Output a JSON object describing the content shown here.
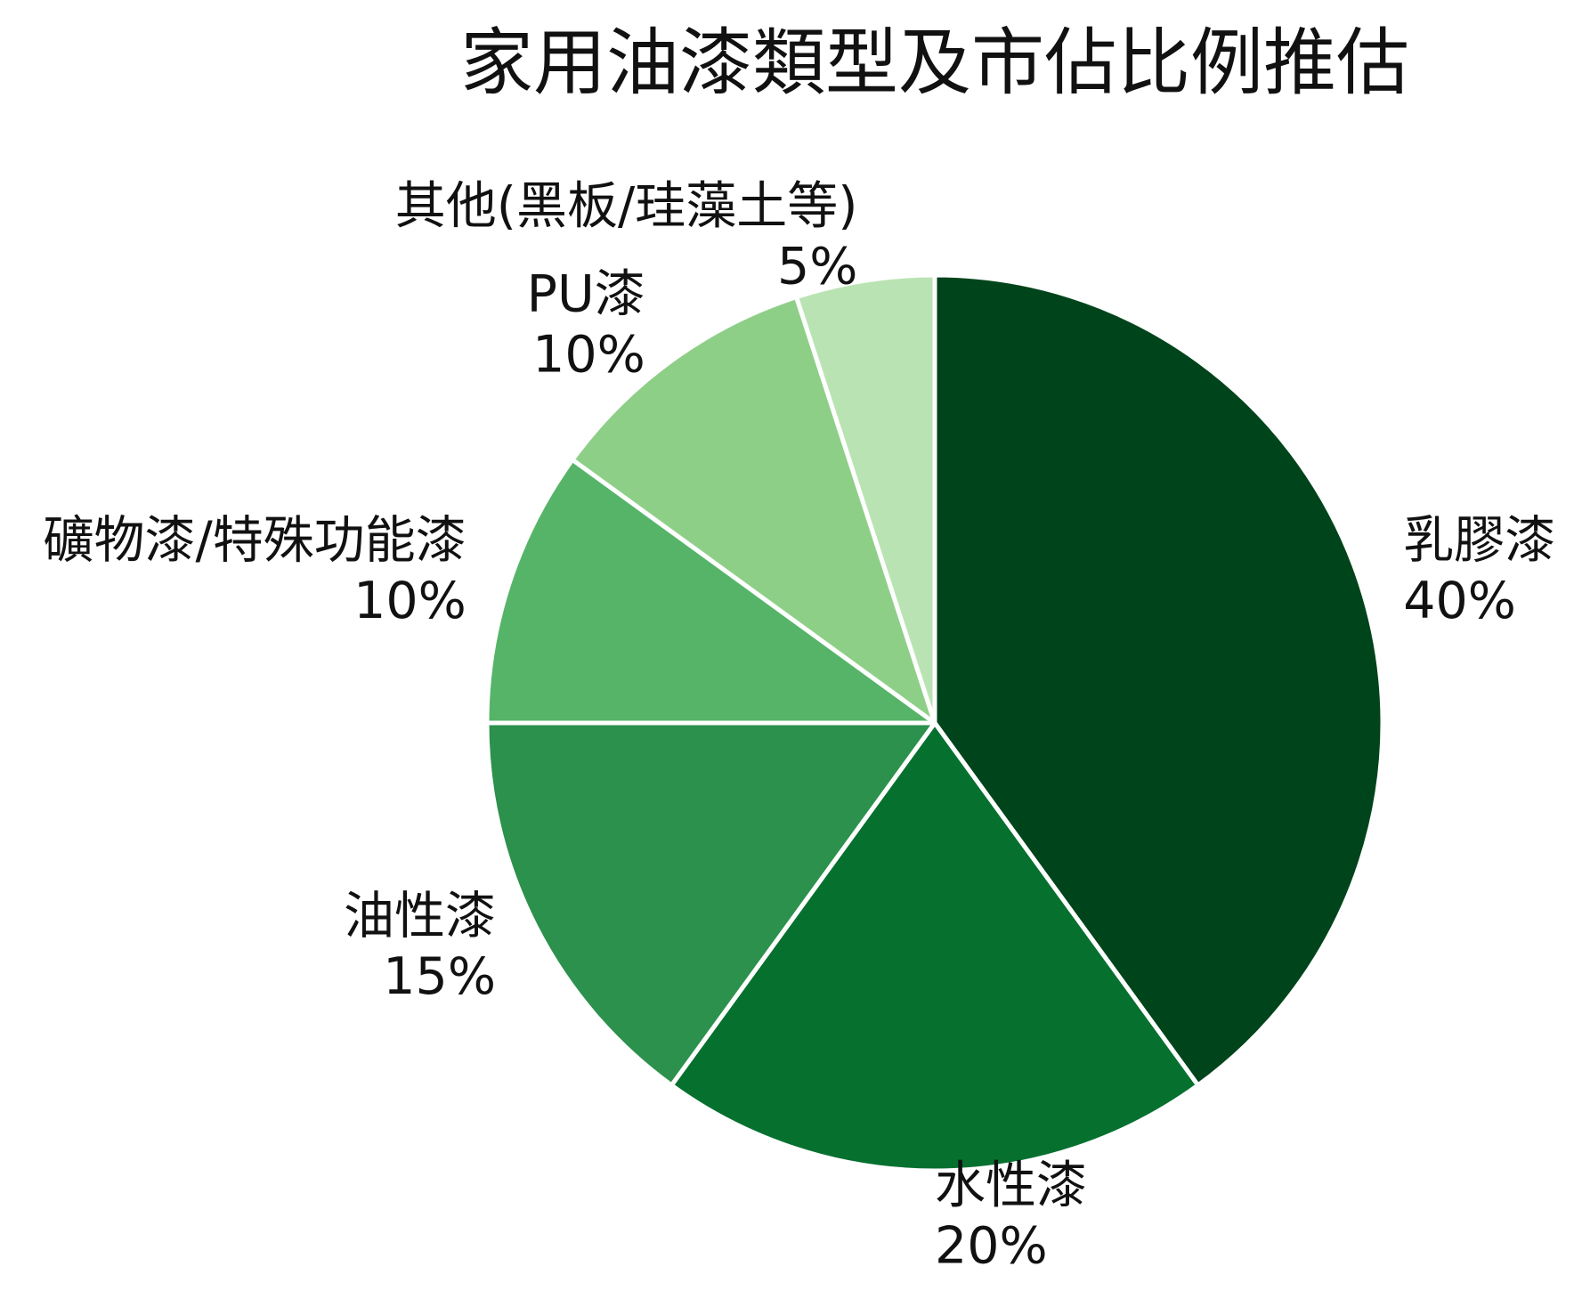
{
  "chart_data": {
    "type": "pie",
    "title": "家用油漆類型及市佔比例推估",
    "categories": [
      "乳膠漆",
      "水性漆",
      "油性漆",
      "礦物漆/特殊功能漆",
      "PU漆",
      "其他(黑板/珪藻土等)"
    ],
    "values": [
      40,
      20,
      15,
      10,
      10,
      5
    ],
    "data_labels": [
      "40%",
      "20%",
      "15%",
      "10%",
      "10%",
      "5%"
    ],
    "colors": [
      "#00441b",
      "#06702f",
      "#2c914c",
      "#56b468",
      "#8ecf88",
      "#bae3b3"
    ],
    "edge_color": "#ffffff",
    "direction": "clockwise"
  }
}
